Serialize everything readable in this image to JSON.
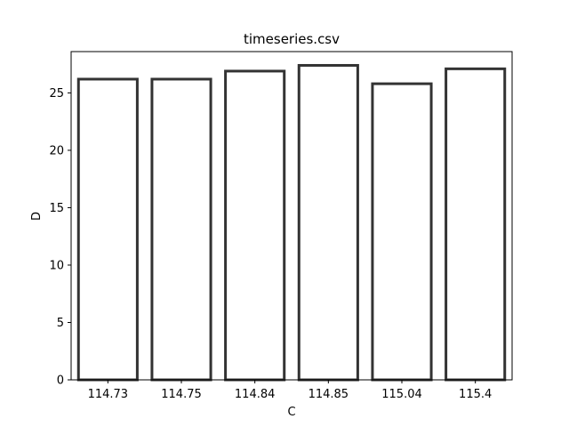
{
  "chart_data": {
    "type": "bar",
    "title": "timeseries.csv",
    "xlabel": "C",
    "ylabel": "D",
    "categories": [
      "114.73",
      "114.75",
      "114.84",
      "114.85",
      "115.04",
      "115.4"
    ],
    "values": [
      26.2,
      26.2,
      26.9,
      27.4,
      25.8,
      27.1
    ],
    "ylim": [
      0,
      28.6
    ],
    "yticks": [
      "0",
      "5",
      "10",
      "15",
      "20",
      "25"
    ],
    "grid": false,
    "legend": "none",
    "bar_fill": "#ffffff",
    "bar_edge": "#333333",
    "axis_color": "#000000"
  }
}
